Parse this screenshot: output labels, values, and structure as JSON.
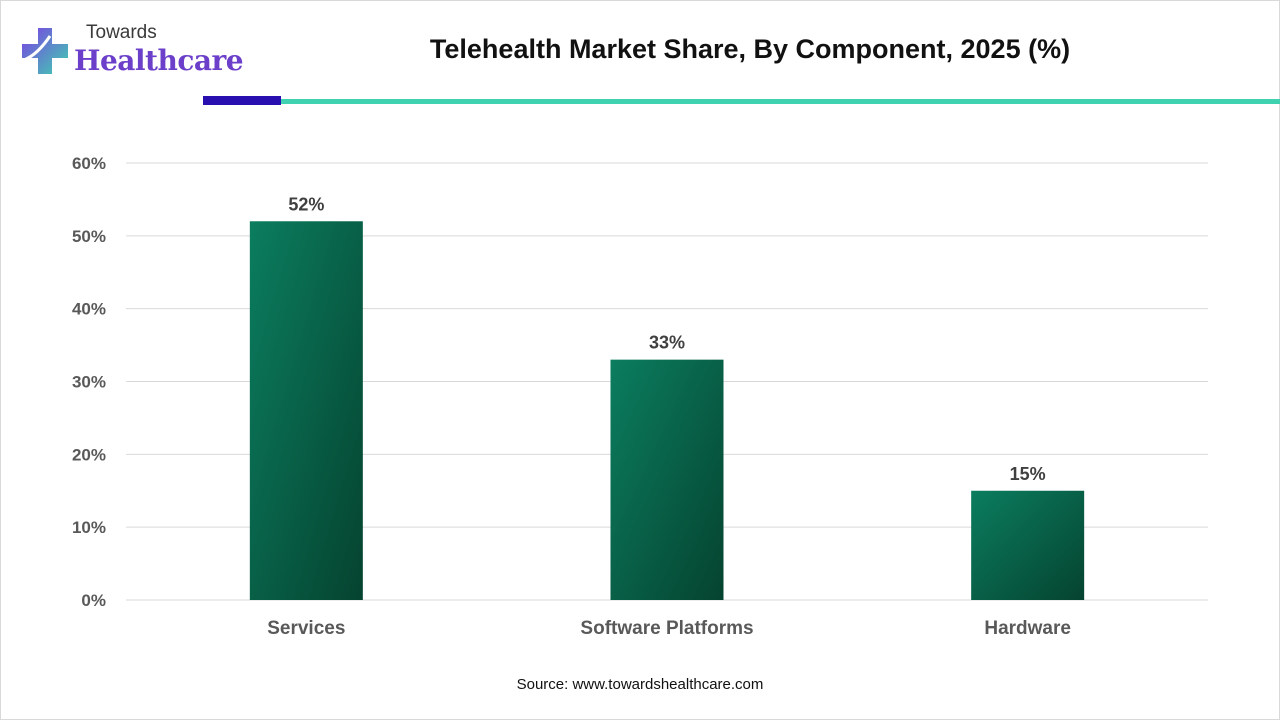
{
  "logo": {
    "line1": "Towards",
    "line2": "Healthcare"
  },
  "title": "Telehealth Market Share, By Component, 2025 (%)",
  "source": "Source: www.towardshealthcare.com",
  "colors": {
    "accent_dark": "#2a0fb0",
    "accent_teal": "#3fd1b0",
    "bar_light": "#0b7d5f",
    "bar_dark": "#05432f",
    "grid": "#d9d9d9",
    "axis_text": "#595959",
    "label_text": "#404040"
  },
  "chart_data": {
    "type": "bar",
    "title": "Telehealth Market Share, By Component, 2025 (%)",
    "categories": [
      "Services",
      "Software Platforms",
      "Hardware"
    ],
    "values": [
      52,
      33,
      15
    ],
    "value_labels": [
      "52%",
      "33%",
      "15%"
    ],
    "yticks": [
      "0%",
      "10%",
      "20%",
      "30%",
      "40%",
      "50%",
      "60%"
    ],
    "ylim": [
      0,
      60
    ],
    "grid": true,
    "xlabel": "",
    "ylabel": ""
  }
}
